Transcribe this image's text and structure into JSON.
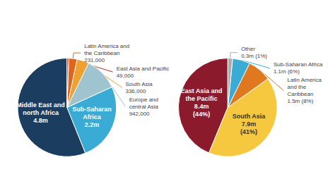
{
  "chart_data": [
    {
      "type": "pie",
      "categories": [
        "Middle East and\nnorth Africa",
        "Sub-Saharan\nAfrica",
        "Europe and\ncentral Asia",
        "South Asia",
        "Latin America and\nthe Caribbean",
        "East Asia and Pacific"
      ],
      "values": [
        4800000,
        2200000,
        942000,
        336000,
        231000,
        49000
      ],
      "value_labels": [
        "4.8m",
        "2.2m",
        "942,000",
        "336,000",
        "231,000",
        "49,000"
      ],
      "colors": [
        "#1b3d5f",
        "#3aabd4",
        "#9fc4d0",
        "#f0a030",
        "#e0641c",
        "#c03020"
      ],
      "data_labels": true
    },
    {
      "type": "pie",
      "categories": [
        "East Asia and\nthe Pacific",
        "South Asia",
        "Latin America\nand the\nCaribbean",
        "Sub-Saharan Africa",
        "Other"
      ],
      "values": [
        8400000,
        7900000,
        1500000,
        1100000,
        300000
      ],
      "value_labels": [
        "8.4m\n(44%)",
        "7.9m\n(41%)",
        "1.5m (8%)",
        "1.1m (6%)",
        "0.3m (1%)"
      ],
      "colors": [
        "#8b1a2c",
        "#f5c840",
        "#e07820",
        "#3aabd4",
        "#b0aaa8"
      ],
      "data_labels": true
    }
  ]
}
